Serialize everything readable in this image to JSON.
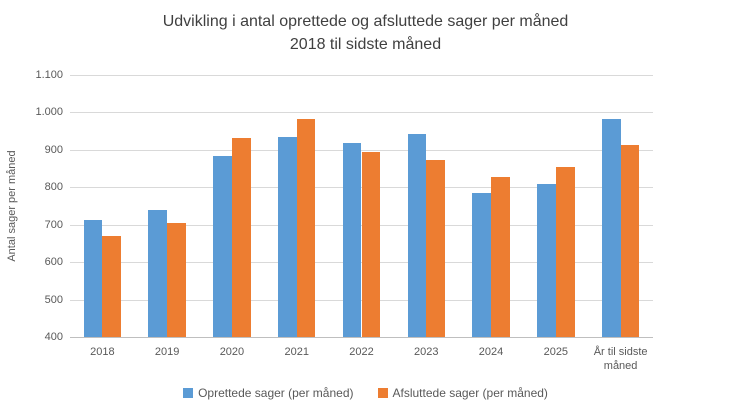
{
  "chart_data": {
    "type": "bar",
    "title_line1": "Udvikling i antal oprettede og afsluttede sager per måned",
    "title_line2": "2018 til sidste måned",
    "ylabel": "Antal sager per måned",
    "xlabel": "",
    "categories": [
      "2018",
      "2019",
      "2020",
      "2021",
      "2022",
      "2023",
      "2024",
      "2025",
      "År til sidste måned"
    ],
    "series": [
      {
        "name": "Oprettede sager (per måned)",
        "color": "#5B9BD5",
        "values": [
          715,
          740,
          885,
          935,
          920,
          943,
          785,
          810,
          985
        ]
      },
      {
        "name": "Afsluttede sager (per måned)",
        "color": "#ED7D31",
        "values": [
          672,
          705,
          932,
          985,
          895,
          875,
          828,
          855,
          913
        ]
      }
    ],
    "ylim": [
      400,
      1100
    ],
    "y_tick_values": [
      1100,
      1000,
      900,
      800,
      700,
      600,
      500,
      400
    ],
    "y_tick_labels": [
      "1.100",
      "1.000",
      "900",
      "800",
      "700",
      "600",
      "500",
      "400"
    ],
    "grid": true,
    "legend_position": "bottom",
    "colors": {
      "grid_line": "#d9d9d9",
      "axis_line": "#bfbfbf",
      "title_text": "#404040",
      "tick_text": "#595959"
    }
  }
}
